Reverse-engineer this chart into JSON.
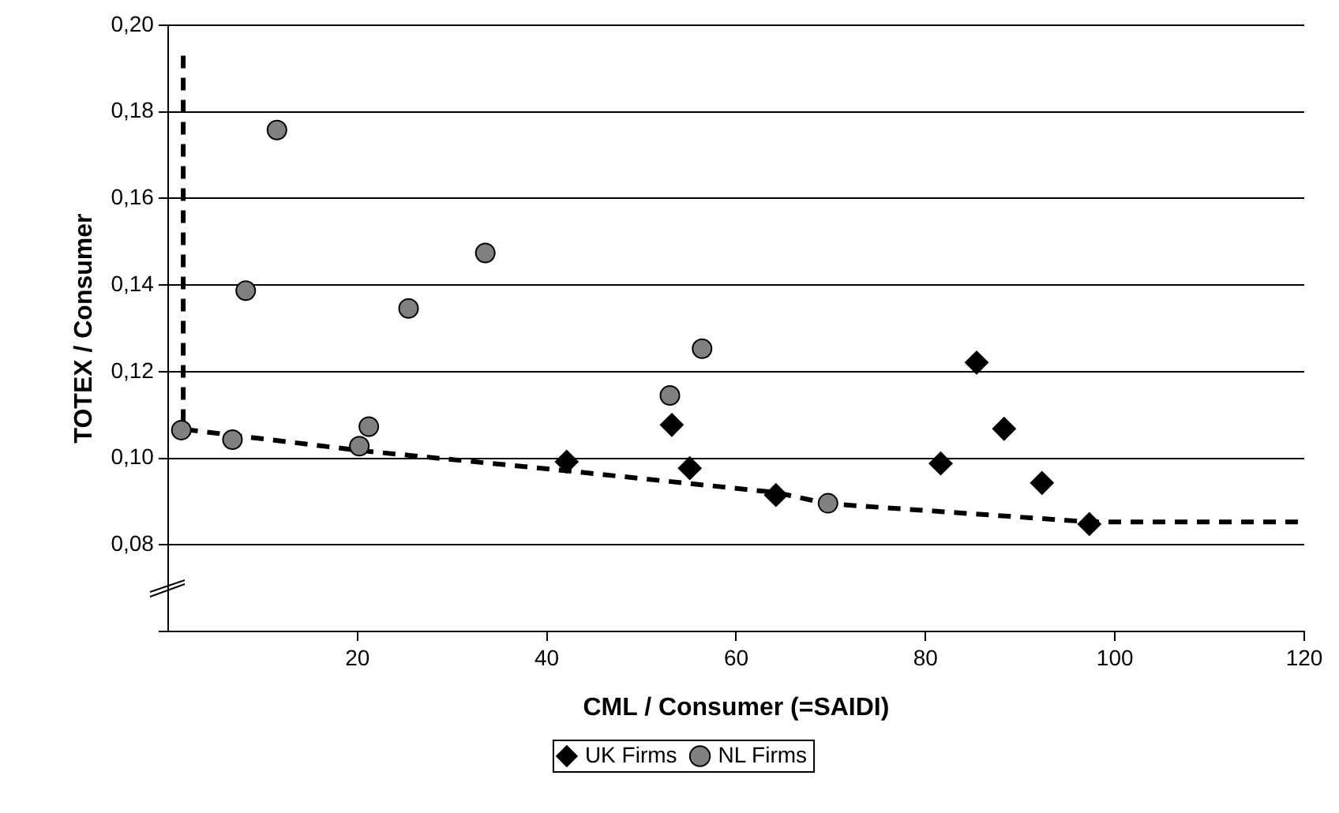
{
  "chart_data": {
    "type": "scatter",
    "xlabel": "CML / Consumer (=SAIDI)",
    "ylabel": "TOTEX / Consumer",
    "xlim": [
      0,
      120
    ],
    "xticks": [
      20,
      40,
      60,
      80,
      100,
      120
    ],
    "ylim": [
      0.06,
      0.2
    ],
    "yticks": [
      {
        "value": 0.06,
        "label": null
      },
      {
        "value": 0.08,
        "label": "0,08"
      },
      {
        "value": 0.1,
        "label": "0,10"
      },
      {
        "value": 0.12,
        "label": "0,12"
      },
      {
        "value": 0.14,
        "label": "0,14"
      },
      {
        "value": 0.16,
        "label": "0,16"
      },
      {
        "value": 0.18,
        "label": "0,18"
      },
      {
        "value": 0.2,
        "label": "0,20"
      }
    ],
    "grid": "y",
    "legend": "bottom",
    "series": [
      {
        "name": "UK Firms",
        "type": "scatter",
        "marker": "diamond",
        "color": "#000000",
        "x": [
          42.1,
          53.2,
          55.1,
          64.2,
          81.6,
          85.4,
          88.3,
          92.3,
          97.3
        ],
        "values": [
          0.0992,
          0.1077,
          0.0977,
          0.0915,
          0.0988,
          0.1221,
          0.1068,
          0.0943,
          0.0848
        ]
      },
      {
        "name": "NL Firms",
        "type": "scatter",
        "marker": "circle",
        "color": "#808080",
        "x": [
          1.4,
          6.8,
          8.2,
          11.5,
          20.2,
          21.2,
          25.4,
          33.5,
          53.0,
          56.4,
          69.7
        ],
        "values": [
          0.1065,
          0.1043,
          0.1387,
          0.1758,
          0.1028,
          0.1073,
          0.1346,
          0.1474,
          0.1145,
          0.1253,
          0.0896
        ]
      },
      {
        "type": "line",
        "marker": "none",
        "line_style": "dashed",
        "color": "#000000",
        "x": [
          1.6,
          1.6,
          20.2,
          42.1,
          64.2,
          69.7,
          97.3,
          120
        ],
        "values": [
          0.193,
          0.1067,
          0.1018,
          0.0971,
          0.0921,
          0.0895,
          0.0853,
          0.0853
        ]
      }
    ]
  }
}
